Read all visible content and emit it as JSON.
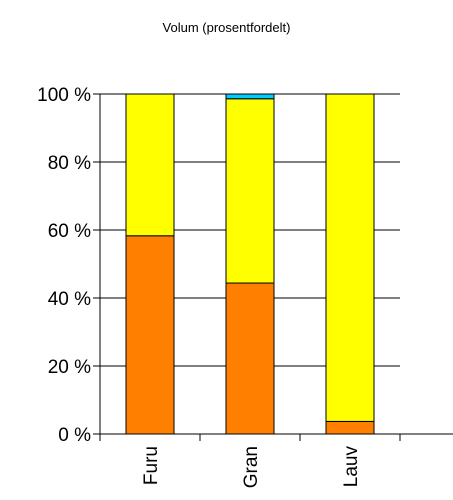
{
  "chart_data": {
    "type": "bar",
    "stacked": true,
    "title": "Volum (prosentfordelt)",
    "xlabel": "",
    "ylabel": "",
    "ylim": [
      0,
      100
    ],
    "yticks": [
      "0 %",
      "20 %",
      "40 %",
      "60 %",
      "80 %",
      "100 %"
    ],
    "categories": [
      "Furu",
      "Gran",
      "Lauv"
    ],
    "series": [
      {
        "color": "#ff7f00",
        "values": [
          58.3,
          44.4,
          3.7
        ]
      },
      {
        "color": "#ffff00",
        "values": [
          41.7,
          54.2,
          96.3
        ]
      },
      {
        "color": "#00ccff",
        "values": [
          0,
          1.4,
          0
        ]
      }
    ],
    "grid": true,
    "legend": "none"
  }
}
